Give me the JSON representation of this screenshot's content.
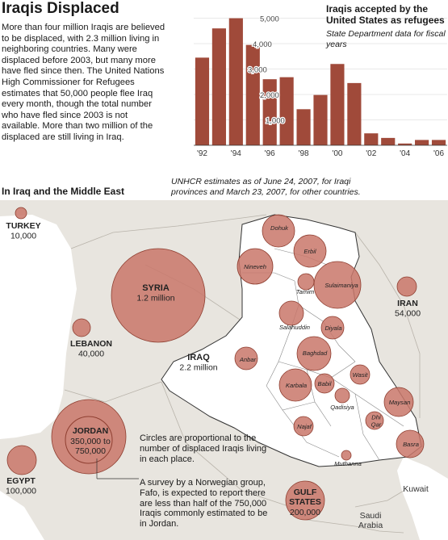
{
  "title": "Iraqis Displaced",
  "intro": "More than four million Iraqis are believed to be displaced, with 2.3 million living in neighboring countries. Many were displaced before 2003, but many more have fled since then. The United Nations High Commissioner for Refugees estimates that 50,000 people flee Iraq every month, though the total number who have fled since 2003 is not available. More than two million of the displaced are still living in Iraq.",
  "colors": {
    "bar": "#a04a3a",
    "circle": "#c9776a",
    "circle_stroke": "#8e3e30",
    "land": "#e8e5df",
    "iraq": "#ffffff"
  },
  "chart_data": [
    {
      "type": "bar",
      "title": "Iraqis accepted by the United States as refugees",
      "subtitle": "State Department data for fiscal years",
      "categories": [
        "1992",
        "1993",
        "1994",
        "1995",
        "1996",
        "1997",
        "1998",
        "1999",
        "2000",
        "2001",
        "2002",
        "2003",
        "2004",
        "2005",
        "2006"
      ],
      "x_tick_labels": [
        "'92",
        "",
        "'94",
        "",
        "'96",
        "",
        "'98",
        "",
        "'00",
        "",
        "'02",
        "",
        "'04",
        "",
        "'06"
      ],
      "values": [
        3450,
        4600,
        5000,
        3950,
        2600,
        2680,
        1420,
        1980,
        3200,
        2450,
        470,
        290,
        70,
        210,
        210
      ],
      "ylim": [
        0,
        5400
      ],
      "y_ticks": [
        1000,
        2000,
        3000,
        4000,
        5000
      ],
      "y_tick_labels": [
        "1,000",
        "2,000",
        "3,000",
        "4,000",
        "5,000"
      ]
    },
    {
      "type": "bubble-map",
      "title": "In Iraq and the Middle East",
      "note": "UNHCR estimates as of June 24, 2007, for Iraqi provinces and March 23, 2007, for other countries.",
      "countries": [
        {
          "name": "TURKEY",
          "value_label": "10,000",
          "value": 10000
        },
        {
          "name": "SYRIA",
          "value_label": "1.2 million",
          "value": 1200000
        },
        {
          "name": "LEBANON",
          "value_label": "40,000",
          "value": 40000
        },
        {
          "name": "IRAQ",
          "value_label": "2.2 million",
          "value": 2200000
        },
        {
          "name": "IRAN",
          "value_label": "54,000",
          "value": 54000
        },
        {
          "name": "JORDAN",
          "value_label": "350,000 to 750,000",
          "value": [
            350000,
            750000
          ]
        },
        {
          "name": "EGYPT",
          "value_label": "100,000",
          "value": 100000
        },
        {
          "name": "GULF STATES",
          "value_label": "200,000",
          "value": 200000
        }
      ],
      "places": [
        "Kuwait",
        "Saudi Arabia"
      ],
      "provinces": [
        "Dohuk",
        "Erbil",
        "Nineveh",
        "Tamim",
        "Sulaimaniya",
        "Salahuddin",
        "Diyala",
        "Anbar",
        "Baghdad",
        "Wasit",
        "Karbala",
        "Babil",
        "Qadisiya",
        "Maysan",
        "Dhi Qar",
        "Najaf",
        "Basra",
        "Muthanna"
      ]
    }
  ],
  "captions": [
    "Circles are proportional to the number of displaced Iraqis living in each place.",
    "A survey by a Norwegian group, Fafo, is expected to report there are less than half of the 750,000 Iraqis commonly estimated to be in Jordan."
  ]
}
